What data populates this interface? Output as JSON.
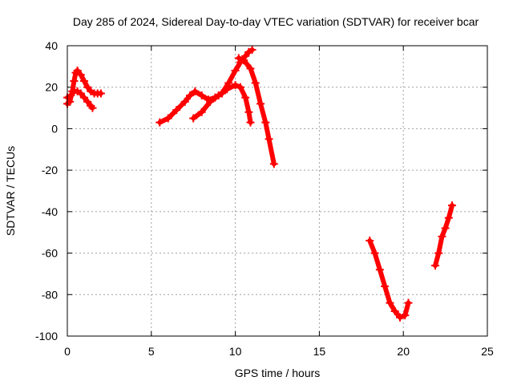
{
  "chart_data": {
    "type": "line",
    "title": "Day 285 of 2024, Sidereal Day-to-day VTEC variation (SDTVAR) for receiver bcar",
    "xlabel": "GPS time / hours",
    "ylabel": "SDTVAR / TECUs",
    "xlim": [
      0,
      25
    ],
    "ylim": [
      -100,
      40
    ],
    "xticks": [
      "0",
      "5",
      "10",
      "15",
      "20",
      "25"
    ],
    "yticks": [
      "40",
      "20",
      "0",
      "-20",
      "-40",
      "-60",
      "-80",
      "-100"
    ],
    "grid": true,
    "color": "#ff0000",
    "segments": [
      [
        [
          0.0,
          12
        ],
        [
          0.15,
          13
        ],
        [
          0.3,
          18
        ],
        [
          0.4,
          23
        ],
        [
          0.5,
          27
        ],
        [
          0.6,
          28
        ],
        [
          0.8,
          26
        ],
        [
          1.0,
          23
        ],
        [
          1.2,
          20
        ],
        [
          1.4,
          18
        ],
        [
          1.6,
          17
        ],
        [
          1.8,
          17
        ],
        [
          2.0,
          17
        ]
      ],
      [
        [
          0.0,
          15
        ],
        [
          0.2,
          16
        ],
        [
          0.4,
          18
        ],
        [
          0.6,
          18
        ],
        [
          0.8,
          17
        ],
        [
          1.0,
          15
        ],
        [
          1.2,
          13
        ],
        [
          1.4,
          11
        ],
        [
          1.5,
          10
        ]
      ],
      [
        [
          5.5,
          3
        ],
        [
          6.0,
          5
        ],
        [
          6.5,
          9
        ],
        [
          7.0,
          13
        ],
        [
          7.3,
          16
        ],
        [
          7.6,
          18
        ],
        [
          8.0,
          16
        ],
        [
          8.4,
          14
        ],
        [
          8.8,
          15
        ],
        [
          9.2,
          17
        ]
      ],
      [
        [
          7.5,
          5
        ],
        [
          8.0,
          8
        ],
        [
          8.5,
          13
        ],
        [
          9.0,
          16
        ],
        [
          9.5,
          19
        ],
        [
          10.0,
          21
        ],
        [
          10.3,
          20
        ],
        [
          10.6,
          15
        ],
        [
          10.8,
          8
        ],
        [
          10.9,
          3
        ]
      ],
      [
        [
          9.2,
          17
        ],
        [
          9.6,
          22
        ],
        [
          10.0,
          28
        ],
        [
          10.3,
          32
        ],
        [
          10.6,
          35
        ],
        [
          10.8,
          37
        ],
        [
          11.0,
          38
        ]
      ],
      [
        [
          10.2,
          34
        ],
        [
          10.5,
          33
        ],
        [
          10.9,
          29
        ],
        [
          11.2,
          22
        ],
        [
          11.5,
          12
        ],
        [
          11.8,
          3
        ],
        [
          12.0,
          -5
        ],
        [
          12.3,
          -17
        ]
      ],
      [
        [
          18.0,
          -54
        ],
        [
          18.3,
          -60
        ],
        [
          18.6,
          -68
        ],
        [
          18.9,
          -76
        ],
        [
          19.2,
          -84
        ],
        [
          19.5,
          -88
        ],
        [
          19.8,
          -91
        ],
        [
          20.1,
          -90
        ],
        [
          20.3,
          -84
        ]
      ],
      [
        [
          21.9,
          -66
        ],
        [
          22.1,
          -60
        ],
        [
          22.3,
          -52
        ],
        [
          22.5,
          -48
        ],
        [
          22.7,
          -43
        ],
        [
          22.9,
          -37
        ]
      ]
    ]
  }
}
